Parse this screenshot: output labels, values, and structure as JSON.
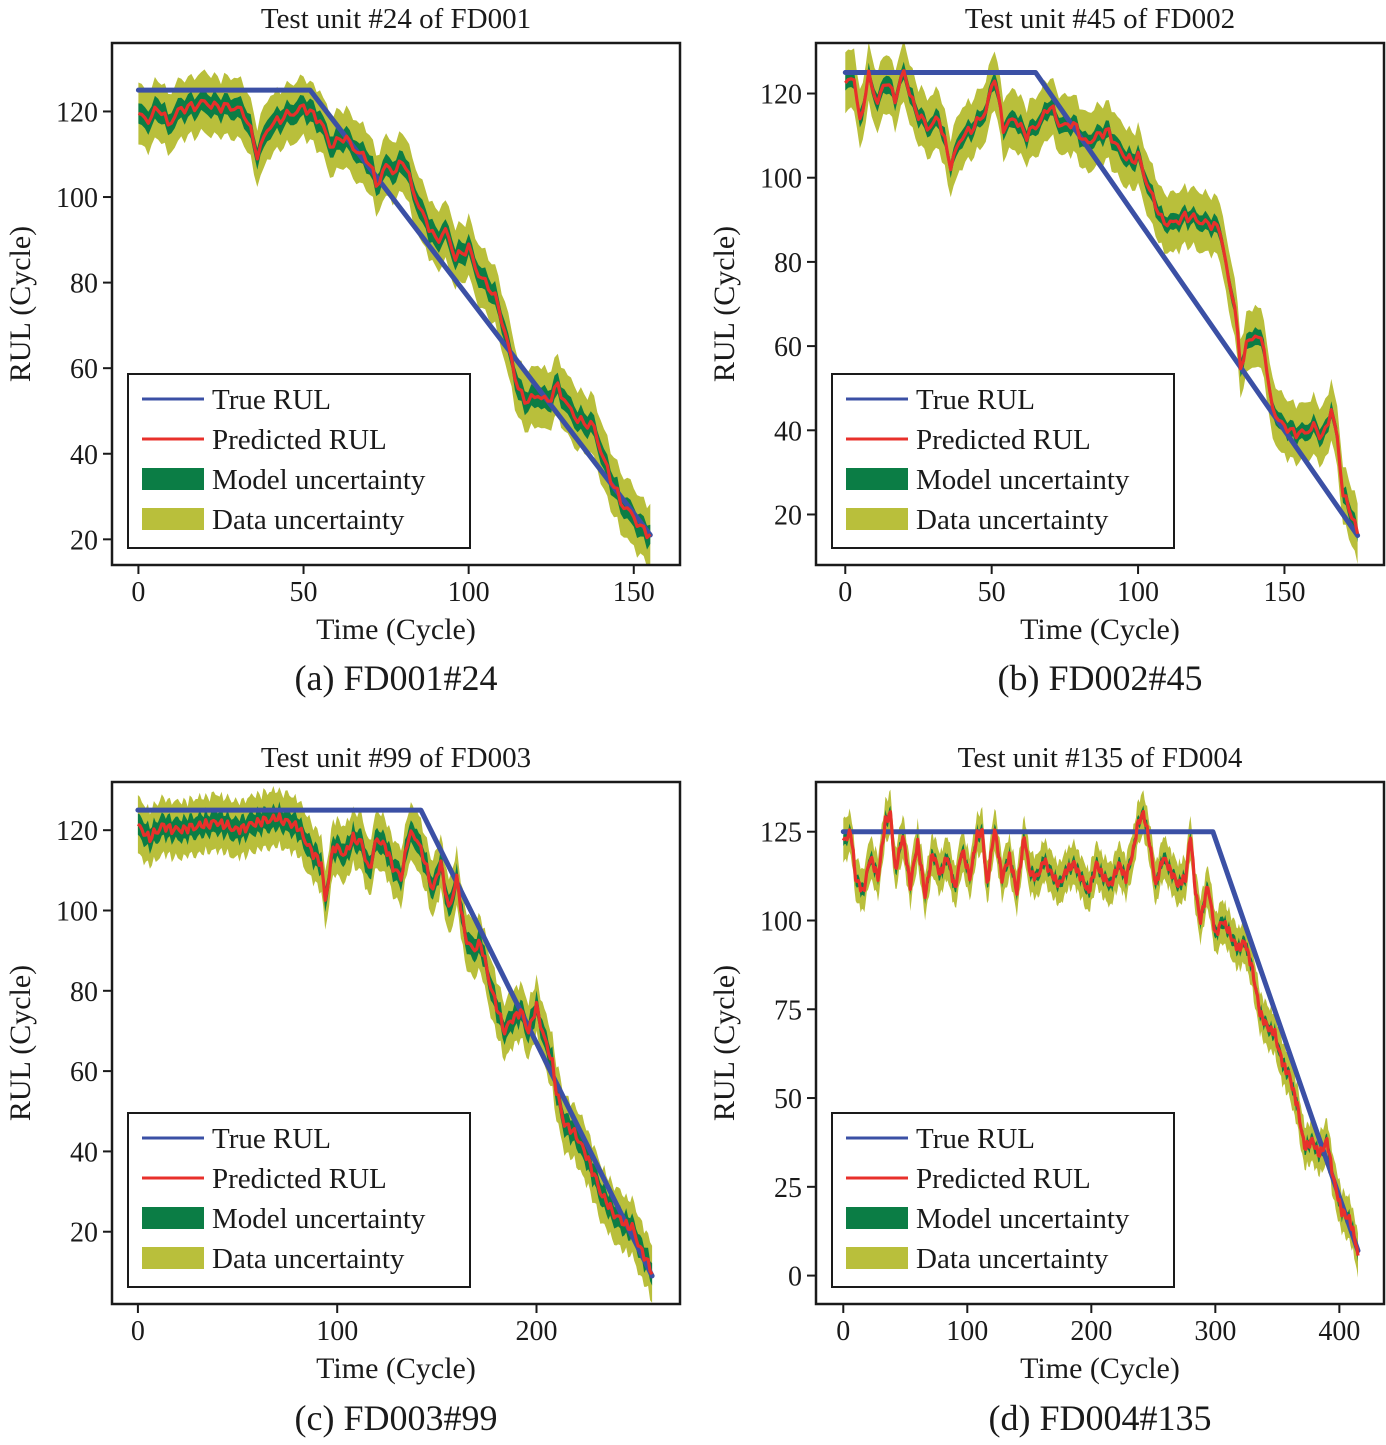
{
  "colors": {
    "true": "#3b50a5",
    "pred": "#e8302b",
    "model": "#0b7d45",
    "data": "#b9bf3b"
  },
  "chart_data": [
    {
      "type": "line",
      "title": "Test unit #24 of FD001",
      "caption": "(a) FD001#24",
      "xlabel": "Time (Cycle)",
      "ylabel": "RUL (Cycle)",
      "xlim": [
        -8,
        164
      ],
      "ylim": [
        14,
        136
      ],
      "xticks": [
        0,
        50,
        100,
        150
      ],
      "yticks": [
        20,
        40,
        60,
        80,
        100,
        120
      ],
      "legend": "lower-left",
      "series_names": [
        "True RUL",
        "Predicted RUL",
        "Model uncertainty",
        "Data uncertainty"
      ],
      "true_rul": [
        [
          0,
          125
        ],
        [
          52,
          125
        ],
        [
          155,
          21
        ]
      ],
      "predicted_rul": [
        [
          0,
          119
        ],
        [
          3,
          118
        ],
        [
          6,
          121
        ],
        [
          9,
          117
        ],
        [
          12,
          120
        ],
        [
          15,
          121
        ],
        [
          20,
          122
        ],
        [
          25,
          121
        ],
        [
          30,
          121
        ],
        [
          33,
          118
        ],
        [
          36,
          110
        ],
        [
          40,
          117
        ],
        [
          45,
          119
        ],
        [
          50,
          121
        ],
        [
          55,
          118
        ],
        [
          58,
          112
        ],
        [
          62,
          114
        ],
        [
          66,
          111
        ],
        [
          70,
          108
        ],
        [
          72,
          103
        ],
        [
          75,
          107
        ],
        [
          78,
          106
        ],
        [
          80,
          109
        ],
        [
          83,
          102
        ],
        [
          86,
          96
        ],
        [
          90,
          90
        ],
        [
          93,
          92
        ],
        [
          96,
          86
        ],
        [
          100,
          88
        ],
        [
          103,
          82
        ],
        [
          106,
          79
        ],
        [
          109,
          75
        ],
        [
          111,
          68
        ],
        [
          113,
          62
        ],
        [
          115,
          55
        ],
        [
          118,
          52
        ],
        [
          121,
          54
        ],
        [
          124,
          52
        ],
        [
          127,
          56
        ],
        [
          130,
          51
        ],
        [
          133,
          48
        ],
        [
          136,
          47
        ],
        [
          138,
          46
        ],
        [
          140,
          41
        ],
        [
          143,
          34
        ],
        [
          146,
          29
        ],
        [
          149,
          26
        ],
        [
          152,
          23
        ],
        [
          155,
          21
        ]
      ],
      "model_band": 4,
      "data_band": 2.5
    },
    {
      "type": "line",
      "title": "Test unit #45 of FD002",
      "caption": "(b) FD002#45",
      "xlabel": "Time (Cycle)",
      "ylabel": "RUL (Cycle)",
      "xlim": [
        -10,
        184
      ],
      "ylim": [
        8,
        132
      ],
      "xticks": [
        0,
        50,
        100,
        150
      ],
      "yticks": [
        20,
        40,
        60,
        80,
        100,
        120
      ],
      "legend": "lower-left",
      "series_names": [
        "True RUL",
        "Predicted RUL",
        "Model uncertainty",
        "Data uncertainty"
      ],
      "true_rul": [
        [
          0,
          125
        ],
        [
          65,
          125
        ],
        [
          175,
          15
        ]
      ],
      "predicted_rul": [
        [
          0,
          122
        ],
        [
          3,
          124
        ],
        [
          5,
          113
        ],
        [
          8,
          124
        ],
        [
          11,
          118
        ],
        [
          14,
          123
        ],
        [
          17,
          119
        ],
        [
          20,
          125
        ],
        [
          24,
          116
        ],
        [
          28,
          112
        ],
        [
          32,
          114
        ],
        [
          36,
          103
        ],
        [
          40,
          110
        ],
        [
          44,
          112
        ],
        [
          48,
          116
        ],
        [
          51,
          124
        ],
        [
          54,
          112
        ],
        [
          58,
          114
        ],
        [
          62,
          110
        ],
        [
          66,
          113
        ],
        [
          70,
          117
        ],
        [
          74,
          112
        ],
        [
          78,
          113
        ],
        [
          82,
          108
        ],
        [
          86,
          110
        ],
        [
          90,
          111
        ],
        [
          94,
          106
        ],
        [
          98,
          104
        ],
        [
          100,
          105
        ],
        [
          104,
          97
        ],
        [
          108,
          90
        ],
        [
          112,
          89
        ],
        [
          116,
          91
        ],
        [
          120,
          90
        ],
        [
          124,
          89
        ],
        [
          128,
          88
        ],
        [
          131,
          75
        ],
        [
          133,
          70
        ],
        [
          135,
          55
        ],
        [
          137,
          60
        ],
        [
          140,
          63
        ],
        [
          143,
          60
        ],
        [
          145,
          48
        ],
        [
          148,
          42
        ],
        [
          152,
          40
        ],
        [
          156,
          39
        ],
        [
          160,
          41
        ],
        [
          163,
          38
        ],
        [
          166,
          45
        ],
        [
          168,
          38
        ],
        [
          170,
          25
        ],
        [
          173,
          20
        ],
        [
          175,
          15
        ]
      ],
      "model_band": 3,
      "data_band": 3.5
    },
    {
      "type": "line",
      "title": "Test unit #99 of FD003",
      "caption": "(c) FD003#99",
      "xlabel": "Time (Cycle)",
      "ylabel": "RUL (Cycle)",
      "xlim": [
        -13,
        272
      ],
      "ylim": [
        2,
        132
      ],
      "xticks": [
        0,
        100,
        200
      ],
      "yticks": [
        20,
        40,
        60,
        80,
        100,
        120
      ],
      "legend": "lower-left",
      "series_names": [
        "True RUL",
        "Predicted RUL",
        "Model uncertainty",
        "Data uncertainty"
      ],
      "true_rul": [
        [
          0,
          125
        ],
        [
          142,
          125
        ],
        [
          258,
          9
        ]
      ],
      "predicted_rul": [
        [
          0,
          121
        ],
        [
          6,
          118
        ],
        [
          12,
          121
        ],
        [
          20,
          120
        ],
        [
          30,
          121
        ],
        [
          40,
          122
        ],
        [
          50,
          120
        ],
        [
          60,
          122
        ],
        [
          70,
          123
        ],
        [
          80,
          121
        ],
        [
          88,
          114
        ],
        [
          92,
          112
        ],
        [
          94,
          102
        ],
        [
          98,
          116
        ],
        [
          104,
          114
        ],
        [
          108,
          118
        ],
        [
          112,
          117
        ],
        [
          116,
          110
        ],
        [
          120,
          118
        ],
        [
          124,
          116
        ],
        [
          128,
          111
        ],
        [
          132,
          108
        ],
        [
          136,
          119
        ],
        [
          140,
          118
        ],
        [
          144,
          112
        ],
        [
          148,
          105
        ],
        [
          152,
          112
        ],
        [
          156,
          100
        ],
        [
          160,
          108
        ],
        [
          164,
          94
        ],
        [
          168,
          90
        ],
        [
          172,
          92
        ],
        [
          176,
          83
        ],
        [
          180,
          76
        ],
        [
          184,
          70
        ],
        [
          188,
          73
        ],
        [
          192,
          75
        ],
        [
          196,
          70
        ],
        [
          200,
          76
        ],
        [
          204,
          68
        ],
        [
          208,
          62
        ],
        [
          210,
          55
        ],
        [
          214,
          47
        ],
        [
          220,
          44
        ],
        [
          226,
          38
        ],
        [
          232,
          30
        ],
        [
          238,
          25
        ],
        [
          244,
          22
        ],
        [
          248,
          21
        ],
        [
          252,
          16
        ],
        [
          258,
          10
        ]
      ],
      "model_band": 4.5,
      "data_band": 2
    },
    {
      "type": "line",
      "title": "Test unit #135 of FD004",
      "caption": "(d) FD004#135",
      "xlabel": "Time (Cycle)",
      "ylabel": "RUL (Cycle)",
      "xlim": [
        -22,
        436
      ],
      "ylim": [
        -8,
        139
      ],
      "xticks": [
        0,
        100,
        200,
        300,
        400
      ],
      "yticks": [
        0,
        25,
        50,
        75,
        100,
        125
      ],
      "legend": "lower-left",
      "series_names": [
        "True RUL",
        "Predicted RUL",
        "Model uncertainty",
        "Data uncertainty"
      ],
      "true_rul": [
        [
          0,
          125
        ],
        [
          298,
          125
        ],
        [
          415,
          7
        ]
      ],
      "predicted_rul": [
        [
          0,
          122
        ],
        [
          6,
          125
        ],
        [
          10,
          112
        ],
        [
          16,
          108
        ],
        [
          22,
          118
        ],
        [
          28,
          112
        ],
        [
          34,
          128
        ],
        [
          38,
          130
        ],
        [
          42,
          114
        ],
        [
          48,
          124
        ],
        [
          54,
          110
        ],
        [
          60,
          122
        ],
        [
          66,
          107
        ],
        [
          72,
          119
        ],
        [
          78,
          113
        ],
        [
          84,
          118
        ],
        [
          90,
          109
        ],
        [
          96,
          120
        ],
        [
          102,
          112
        ],
        [
          108,
          124
        ],
        [
          112,
          125
        ],
        [
          116,
          110
        ],
        [
          122,
          126
        ],
        [
          128,
          112
        ],
        [
          134,
          118
        ],
        [
          140,
          108
        ],
        [
          146,
          124
        ],
        [
          150,
          114
        ],
        [
          156,
          112
        ],
        [
          162,
          117
        ],
        [
          168,
          113
        ],
        [
          174,
          110
        ],
        [
          180,
          114
        ],
        [
          186,
          116
        ],
        [
          192,
          112
        ],
        [
          198,
          108
        ],
        [
          204,
          116
        ],
        [
          210,
          112
        ],
        [
          216,
          110
        ],
        [
          222,
          116
        ],
        [
          228,
          112
        ],
        [
          234,
          120
        ],
        [
          238,
          128
        ],
        [
          242,
          130
        ],
        [
          246,
          124
        ],
        [
          252,
          110
        ],
        [
          258,
          118
        ],
        [
          264,
          114
        ],
        [
          270,
          110
        ],
        [
          276,
          112
        ],
        [
          280,
          124
        ],
        [
          284,
          108
        ],
        [
          288,
          100
        ],
        [
          294,
          110
        ],
        [
          300,
          96
        ],
        [
          306,
          100
        ],
        [
          312,
          96
        ],
        [
          318,
          92
        ],
        [
          324,
          94
        ],
        [
          330,
          86
        ],
        [
          336,
          74
        ],
        [
          342,
          70
        ],
        [
          348,
          68
        ],
        [
          354,
          60
        ],
        [
          360,
          56
        ],
        [
          366,
          48
        ],
        [
          372,
          36
        ],
        [
          378,
          38
        ],
        [
          384,
          34
        ],
        [
          390,
          38
        ],
        [
          396,
          26
        ],
        [
          402,
          18
        ],
        [
          408,
          16
        ],
        [
          413,
          10
        ],
        [
          415,
          5
        ]
      ],
      "model_band": 2.5,
      "data_band": 3
    }
  ]
}
